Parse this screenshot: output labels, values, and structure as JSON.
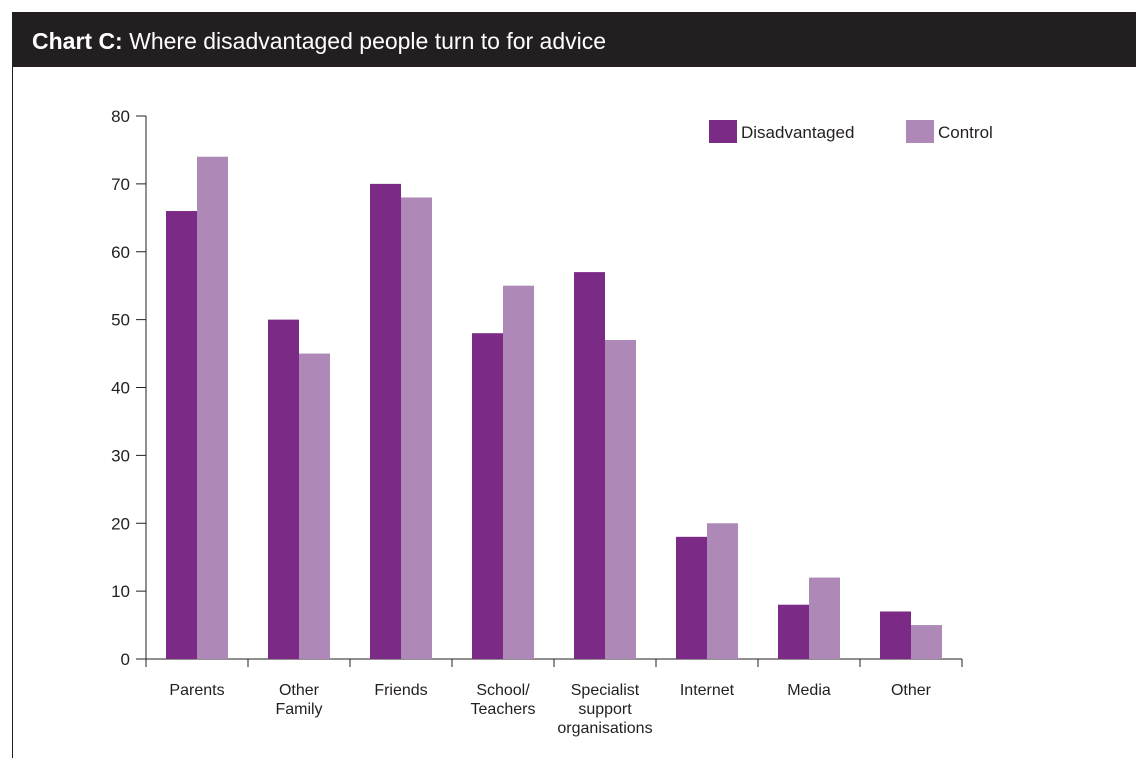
{
  "title_label": "Chart C:",
  "title_text": "Where disadvantaged people turn to for advice",
  "chart_data": {
    "type": "bar",
    "title": "Chart C: Where disadvantaged people turn to for advice",
    "xlabel": "",
    "ylabel": "",
    "ylim": [
      0,
      80
    ],
    "yticks": [
      0,
      10,
      20,
      30,
      40,
      50,
      60,
      70,
      80
    ],
    "grid": false,
    "legend_position": "top-right",
    "categories": [
      "Parents",
      "Other\nFamily",
      "Friends",
      "School/\nTeachers",
      "Specialist\nsupport\norganisations",
      "Internet",
      "Media",
      "Other"
    ],
    "series": [
      {
        "name": "Disadvantaged",
        "color": "#7b2a86",
        "values": [
          66,
          50,
          70,
          48,
          57,
          18,
          8,
          7
        ]
      },
      {
        "name": "Control",
        "color": "#ae89b8",
        "values": [
          74,
          45,
          68,
          55,
          47,
          20,
          12,
          5
        ]
      }
    ]
  }
}
